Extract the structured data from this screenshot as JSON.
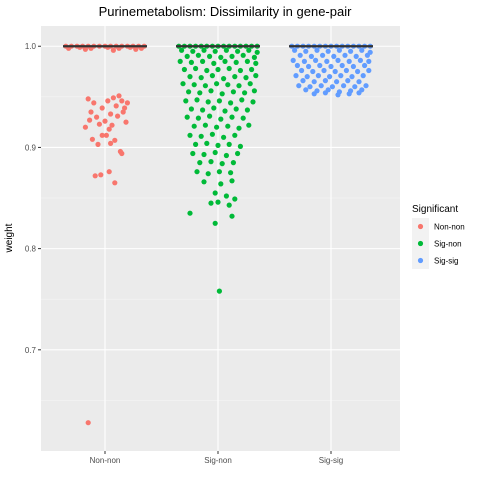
{
  "chart_data": {
    "type": "scatter",
    "subtype": "jitter-boxplot",
    "title": "Purinemetabolism: Dissimilarity in gene-pair",
    "xlabel": "",
    "ylabel": "weight",
    "categories": [
      "Non-non",
      "Sig-non",
      "Sig-sig"
    ],
    "ylim": [
      0.6,
      1.02
    ],
    "yticks": [
      0.7,
      0.8,
      0.9,
      1.0
    ],
    "ytick_labels": [
      "0.7",
      "0.8",
      "0.9",
      "1.0"
    ],
    "grid": true,
    "legend": {
      "title": "Significant",
      "position": "right",
      "entries": [
        "Non-non",
        "Sig-non",
        "Sig-sig"
      ]
    },
    "colors": {
      "Non-non": "#f8766d",
      "Sig-non": "#00ba38",
      "Sig-sig": "#619cff"
    },
    "box_median": [
      1.0,
      1.0,
      1.0
    ],
    "series": [
      {
        "name": "Non-non",
        "points": [
          [
            -0.28,
            1.0
          ],
          [
            -0.24,
            1.0
          ],
          [
            -0.2,
            1.0
          ],
          [
            -0.16,
            1.0
          ],
          [
            -0.12,
            1.0
          ],
          [
            -0.08,
            1.0
          ],
          [
            -0.04,
            1.0
          ],
          [
            0.0,
            1.0
          ],
          [
            0.04,
            1.0
          ],
          [
            0.08,
            1.0
          ],
          [
            0.12,
            1.0
          ],
          [
            0.16,
            1.0
          ],
          [
            0.2,
            1.0
          ],
          [
            0.24,
            1.0
          ],
          [
            0.28,
            1.0
          ],
          [
            -0.26,
            0.998
          ],
          [
            -0.18,
            0.999
          ],
          [
            -0.1,
            0.998
          ],
          [
            0.02,
            0.999
          ],
          [
            0.1,
            0.998
          ],
          [
            0.18,
            0.999
          ],
          [
            0.26,
            0.998
          ],
          [
            -0.14,
            0.997
          ],
          [
            0.06,
            0.996
          ],
          [
            0.22,
            0.997
          ],
          [
            -0.12,
            0.948
          ],
          [
            -0.08,
            0.944
          ],
          [
            -0.02,
            0.939
          ],
          [
            0.02,
            0.946
          ],
          [
            0.04,
            0.933
          ],
          [
            0.06,
            0.949
          ],
          [
            0.08,
            0.941
          ],
          [
            0.1,
            0.951
          ],
          [
            0.12,
            0.946
          ],
          [
            0.14,
            0.939
          ],
          [
            0.16,
            0.944
          ],
          [
            -0.1,
            0.935
          ],
          [
            -0.06,
            0.93
          ],
          [
            0.0,
            0.926
          ],
          [
            0.05,
            0.922
          ],
          [
            0.09,
            0.931
          ],
          [
            0.15,
            0.925
          ],
          [
            -0.14,
            0.92
          ],
          [
            -0.11,
            0.927
          ],
          [
            -0.04,
            0.923
          ],
          [
            0.03,
            0.918
          ],
          [
            0.13,
            0.935
          ],
          [
            -0.09,
            0.908
          ],
          [
            -0.02,
            0.912
          ],
          [
            0.01,
            0.912
          ],
          [
            0.07,
            0.907
          ],
          [
            0.11,
            0.896
          ],
          [
            0.12,
            0.894
          ],
          [
            -0.05,
            0.903
          ],
          [
            0.04,
            0.904
          ],
          [
            -0.07,
            0.872
          ],
          [
            -0.03,
            0.873
          ],
          [
            0.03,
            0.876
          ],
          [
            0.07,
            0.865
          ],
          [
            -0.12,
            0.628
          ]
        ]
      },
      {
        "name": "Sig-non",
        "points": [
          [
            -0.28,
            1.0
          ],
          [
            -0.24,
            1.0
          ],
          [
            -0.2,
            1.0
          ],
          [
            -0.16,
            1.0
          ],
          [
            -0.12,
            1.0
          ],
          [
            -0.08,
            1.0
          ],
          [
            -0.04,
            1.0
          ],
          [
            0.0,
            1.0
          ],
          [
            0.04,
            1.0
          ],
          [
            0.08,
            1.0
          ],
          [
            0.12,
            1.0
          ],
          [
            0.16,
            1.0
          ],
          [
            0.2,
            1.0
          ],
          [
            0.24,
            1.0
          ],
          [
            0.28,
            1.0
          ],
          [
            -0.26,
            0.996
          ],
          [
            -0.18,
            0.995
          ],
          [
            -0.1,
            0.996
          ],
          [
            -0.02,
            0.995
          ],
          [
            0.06,
            0.996
          ],
          [
            0.14,
            0.995
          ],
          [
            0.22,
            0.996
          ],
          [
            0.28,
            0.994
          ],
          [
            -0.22,
            0.99
          ],
          [
            -0.14,
            0.991
          ],
          [
            -0.06,
            0.99
          ],
          [
            0.02,
            0.989
          ],
          [
            0.1,
            0.99
          ],
          [
            0.18,
            0.991
          ],
          [
            0.26,
            0.989
          ],
          [
            -0.27,
            0.985
          ],
          [
            -0.19,
            0.984
          ],
          [
            -0.11,
            0.985
          ],
          [
            -0.03,
            0.983
          ],
          [
            0.05,
            0.985
          ],
          [
            0.13,
            0.984
          ],
          [
            0.21,
            0.985
          ],
          [
            0.27,
            0.983
          ],
          [
            -0.24,
            0.977
          ],
          [
            -0.16,
            0.978
          ],
          [
            -0.08,
            0.976
          ],
          [
            0.0,
            0.977
          ],
          [
            0.08,
            0.978
          ],
          [
            0.16,
            0.976
          ],
          [
            0.24,
            0.977
          ],
          [
            -0.2,
            0.97
          ],
          [
            -0.12,
            0.969
          ],
          [
            -0.04,
            0.971
          ],
          [
            0.04,
            0.968
          ],
          [
            0.12,
            0.97
          ],
          [
            0.2,
            0.969
          ],
          [
            0.27,
            0.971
          ],
          [
            -0.25,
            0.963
          ],
          [
            -0.17,
            0.962
          ],
          [
            -0.09,
            0.961
          ],
          [
            -0.01,
            0.963
          ],
          [
            0.07,
            0.962
          ],
          [
            0.15,
            0.961
          ],
          [
            0.23,
            0.963
          ],
          [
            -0.21,
            0.955
          ],
          [
            -0.13,
            0.954
          ],
          [
            -0.05,
            0.956
          ],
          [
            0.03,
            0.953
          ],
          [
            0.11,
            0.955
          ],
          [
            0.19,
            0.954
          ],
          [
            0.26,
            0.956
          ],
          [
            -0.23,
            0.946
          ],
          [
            -0.15,
            0.947
          ],
          [
            -0.07,
            0.945
          ],
          [
            0.01,
            0.946
          ],
          [
            0.09,
            0.944
          ],
          [
            0.17,
            0.947
          ],
          [
            0.25,
            0.945
          ],
          [
            -0.19,
            0.938
          ],
          [
            -0.11,
            0.937
          ],
          [
            -0.03,
            0.939
          ],
          [
            0.05,
            0.936
          ],
          [
            0.13,
            0.938
          ],
          [
            0.21,
            0.937
          ],
          [
            -0.22,
            0.93
          ],
          [
            -0.14,
            0.929
          ],
          [
            -0.06,
            0.931
          ],
          [
            0.02,
            0.928
          ],
          [
            0.1,
            0.93
          ],
          [
            0.18,
            0.929
          ],
          [
            -0.17,
            0.921
          ],
          [
            -0.09,
            0.922
          ],
          [
            -0.01,
            0.92
          ],
          [
            0.07,
            0.921
          ],
          [
            0.15,
            0.919
          ],
          [
            0.22,
            0.922
          ],
          [
            -0.2,
            0.912
          ],
          [
            -0.12,
            0.911
          ],
          [
            -0.04,
            0.913
          ],
          [
            0.04,
            0.91
          ],
          [
            0.12,
            0.912
          ],
          [
            -0.16,
            0.903
          ],
          [
            -0.08,
            0.904
          ],
          [
            0.0,
            0.902
          ],
          [
            0.08,
            0.903
          ],
          [
            0.16,
            0.901
          ],
          [
            -0.18,
            0.894
          ],
          [
            -0.1,
            0.893
          ],
          [
            -0.02,
            0.895
          ],
          [
            0.06,
            0.892
          ],
          [
            0.14,
            0.894
          ],
          [
            -0.13,
            0.885
          ],
          [
            -0.05,
            0.886
          ],
          [
            0.03,
            0.884
          ],
          [
            0.11,
            0.885
          ],
          [
            -0.15,
            0.876
          ],
          [
            -0.07,
            0.874
          ],
          [
            0.01,
            0.876
          ],
          [
            0.09,
            0.875
          ],
          [
            -0.1,
            0.866
          ],
          [
            0.02,
            0.864
          ],
          [
            0.1,
            0.867
          ],
          [
            -0.02,
            0.855
          ],
          [
            0.06,
            0.852
          ],
          [
            0.12,
            0.849
          ],
          [
            -0.05,
            0.845
          ],
          [
            0.0,
            0.846
          ],
          [
            0.08,
            0.843
          ],
          [
            -0.2,
            0.835
          ],
          [
            0.1,
            0.832
          ],
          [
            -0.02,
            0.825
          ],
          [
            0.01,
            0.758
          ]
        ]
      },
      {
        "name": "Sig-sig",
        "points": [
          [
            -0.28,
            1.0
          ],
          [
            -0.24,
            1.0
          ],
          [
            -0.2,
            1.0
          ],
          [
            -0.16,
            1.0
          ],
          [
            -0.12,
            1.0
          ],
          [
            -0.08,
            1.0
          ],
          [
            -0.04,
            1.0
          ],
          [
            0.0,
            1.0
          ],
          [
            0.04,
            1.0
          ],
          [
            0.08,
            1.0
          ],
          [
            0.12,
            1.0
          ],
          [
            0.16,
            1.0
          ],
          [
            0.2,
            1.0
          ],
          [
            0.24,
            1.0
          ],
          [
            0.28,
            1.0
          ],
          [
            -0.26,
            0.996
          ],
          [
            -0.18,
            0.995
          ],
          [
            -0.1,
            0.996
          ],
          [
            -0.02,
            0.995
          ],
          [
            0.06,
            0.996
          ],
          [
            0.14,
            0.995
          ],
          [
            0.22,
            0.996
          ],
          [
            0.28,
            0.994
          ],
          [
            -0.22,
            0.991
          ],
          [
            -0.14,
            0.99
          ],
          [
            -0.06,
            0.991
          ],
          [
            0.02,
            0.99
          ],
          [
            0.1,
            0.991
          ],
          [
            0.18,
            0.99
          ],
          [
            0.26,
            0.991
          ],
          [
            -0.27,
            0.986
          ],
          [
            -0.19,
            0.985
          ],
          [
            -0.11,
            0.986
          ],
          [
            -0.03,
            0.985
          ],
          [
            0.05,
            0.986
          ],
          [
            0.13,
            0.985
          ],
          [
            0.21,
            0.986
          ],
          [
            0.27,
            0.985
          ],
          [
            -0.24,
            0.981
          ],
          [
            -0.16,
            0.98
          ],
          [
            -0.08,
            0.981
          ],
          [
            0.0,
            0.98
          ],
          [
            0.08,
            0.981
          ],
          [
            0.16,
            0.98
          ],
          [
            0.24,
            0.981
          ],
          [
            -0.21,
            0.976
          ],
          [
            -0.13,
            0.975
          ],
          [
            -0.05,
            0.976
          ],
          [
            0.03,
            0.975
          ],
          [
            0.11,
            0.976
          ],
          [
            0.19,
            0.975
          ],
          [
            0.27,
            0.976
          ],
          [
            -0.25,
            0.971
          ],
          [
            -0.17,
            0.97
          ],
          [
            -0.09,
            0.971
          ],
          [
            -0.01,
            0.97
          ],
          [
            0.07,
            0.971
          ],
          [
            0.15,
            0.97
          ],
          [
            0.23,
            0.971
          ],
          [
            -0.2,
            0.966
          ],
          [
            -0.12,
            0.965
          ],
          [
            -0.04,
            0.966
          ],
          [
            0.04,
            0.965
          ],
          [
            0.12,
            0.966
          ],
          [
            0.2,
            0.965
          ],
          [
            -0.23,
            0.961
          ],
          [
            -0.15,
            0.96
          ],
          [
            -0.07,
            0.961
          ],
          [
            0.01,
            0.96
          ],
          [
            0.09,
            0.961
          ],
          [
            0.17,
            0.96
          ],
          [
            0.25,
            0.961
          ],
          [
            -0.18,
            0.957
          ],
          [
            -0.1,
            0.956
          ],
          [
            -0.02,
            0.957
          ],
          [
            0.06,
            0.955
          ],
          [
            0.14,
            0.956
          ],
          [
            0.22,
            0.957
          ],
          [
            -0.12,
            0.953
          ],
          [
            -0.04,
            0.954
          ],
          [
            0.05,
            0.952
          ],
          [
            0.13,
            0.953
          ],
          [
            0.2,
            0.954
          ]
        ]
      }
    ]
  }
}
